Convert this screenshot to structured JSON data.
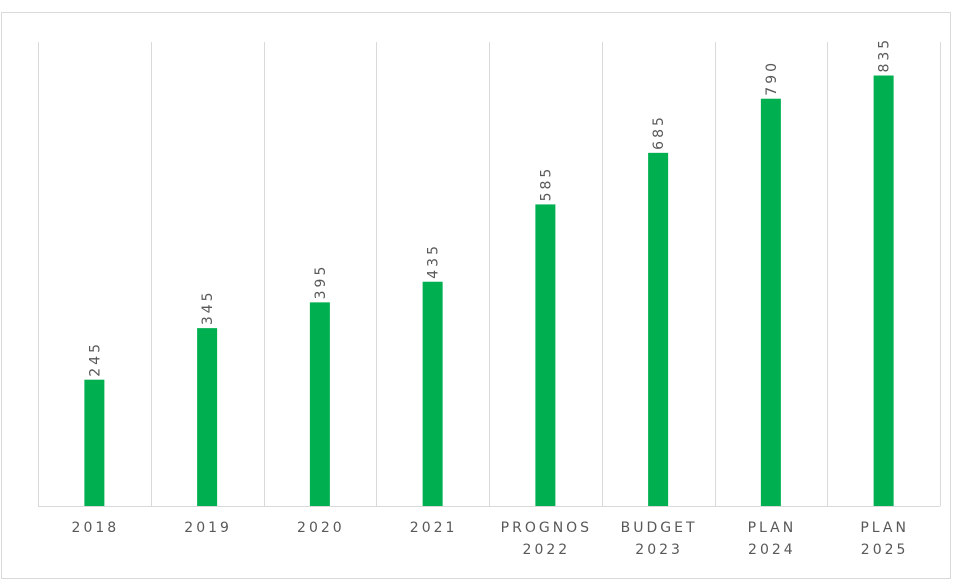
{
  "chart_data": {
    "type": "bar",
    "categories": [
      "2018",
      "2019",
      "2020",
      "2021",
      [
        "PROGNOS",
        "2022"
      ],
      [
        "BUDGET",
        "2023"
      ],
      [
        "PLAN",
        "2024"
      ],
      [
        "PLAN",
        "2025"
      ]
    ],
    "values": [
      245,
      345,
      395,
      435,
      585,
      685,
      790,
      835
    ],
    "color": "#00b050",
    "ylim": [
      0,
      900
    ]
  }
}
